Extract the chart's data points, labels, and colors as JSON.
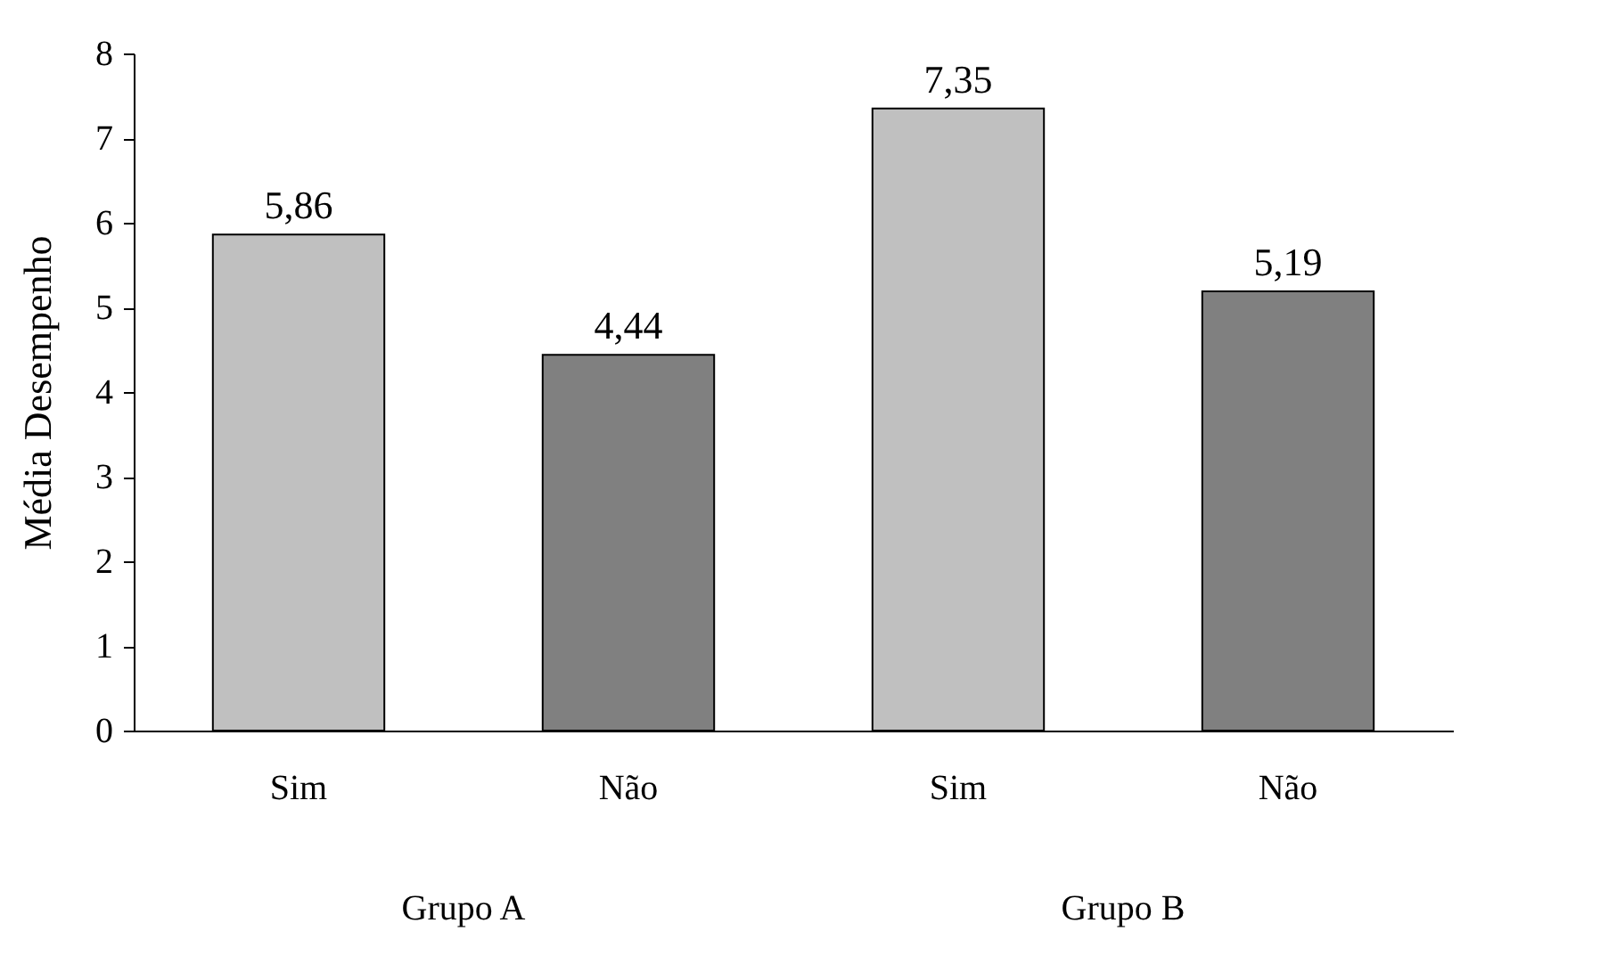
{
  "chart_data": {
    "type": "bar",
    "ylabel": "Média Desempenho",
    "categories": [
      "Sim",
      "Não",
      "Sim",
      "Não"
    ],
    "values": [
      5.86,
      4.44,
      7.35,
      5.19
    ],
    "colors": [
      "#c0c0c0",
      "#808080",
      "#c0c0c0",
      "#808080"
    ],
    "value_labels": [
      "5,86",
      "4,44",
      "7,35",
      "5,19"
    ],
    "annotations": [
      "Grupo A",
      "Grupo B"
    ],
    "ylim": [
      0,
      8
    ],
    "yticks": [
      0,
      1,
      2,
      3,
      4,
      5,
      6,
      7,
      8
    ],
    "grid": false
  }
}
